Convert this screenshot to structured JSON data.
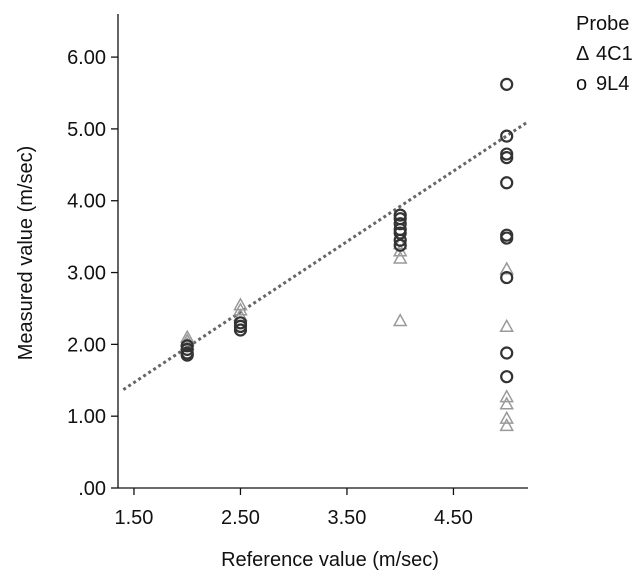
{
  "chart_data": {
    "type": "scatter",
    "xlabel": "Reference value (m/sec)",
    "ylabel": "Measured value (m/sec)",
    "xlim": [
      1.35,
      5.2
    ],
    "ylim": [
      0.0,
      6.6
    ],
    "xticks": [
      1.5,
      2.5,
      3.5,
      4.5
    ],
    "xtick_labels": [
      "1.50",
      "2.50",
      "3.50",
      "4.50"
    ],
    "yticks": [
      0,
      1,
      2,
      3,
      4,
      5,
      6
    ],
    "ytick_labels": [
      ".00",
      "1.00",
      "2.00",
      "3.00",
      "4.00",
      "5.00",
      "6.00"
    ],
    "legend": {
      "title": "Probe",
      "placement": "top-right outside",
      "entries": [
        {
          "symbol": "Δ",
          "label": "4C1"
        },
        {
          "symbol": "o",
          "label": "9L4"
        }
      ]
    },
    "series": [
      {
        "name": "4C1",
        "marker": "triangle",
        "color": "#9a9a9a",
        "points": [
          {
            "x": 2.0,
            "y": 2.1
          },
          {
            "x": 2.0,
            "y": 2.05
          },
          {
            "x": 2.0,
            "y": 2.0
          },
          {
            "x": 2.5,
            "y": 2.55
          },
          {
            "x": 2.5,
            "y": 2.48
          },
          {
            "x": 2.5,
            "y": 2.4
          },
          {
            "x": 4.0,
            "y": 3.4
          },
          {
            "x": 4.0,
            "y": 3.3
          },
          {
            "x": 4.0,
            "y": 3.2
          },
          {
            "x": 4.0,
            "y": 2.33
          },
          {
            "x": 5.0,
            "y": 3.05
          },
          {
            "x": 5.0,
            "y": 2.25
          },
          {
            "x": 5.0,
            "y": 1.27
          },
          {
            "x": 5.0,
            "y": 1.17
          },
          {
            "x": 5.0,
            "y": 0.97
          },
          {
            "x": 5.0,
            "y": 0.87
          }
        ]
      },
      {
        "name": "9L4",
        "marker": "circle",
        "color": "#333333",
        "points": [
          {
            "x": 2.0,
            "y": 1.98
          },
          {
            "x": 2.0,
            "y": 1.93
          },
          {
            "x": 2.0,
            "y": 1.88
          },
          {
            "x": 2.0,
            "y": 1.85
          },
          {
            "x": 2.5,
            "y": 2.3
          },
          {
            "x": 2.5,
            "y": 2.25
          },
          {
            "x": 2.5,
            "y": 2.2
          },
          {
            "x": 4.0,
            "y": 3.8
          },
          {
            "x": 4.0,
            "y": 3.75
          },
          {
            "x": 4.0,
            "y": 3.68
          },
          {
            "x": 4.0,
            "y": 3.6
          },
          {
            "x": 4.0,
            "y": 3.55
          },
          {
            "x": 4.0,
            "y": 3.45
          },
          {
            "x": 4.0,
            "y": 3.38
          },
          {
            "x": 5.0,
            "y": 5.62
          },
          {
            "x": 5.0,
            "y": 4.9
          },
          {
            "x": 5.0,
            "y": 4.65
          },
          {
            "x": 5.0,
            "y": 4.6
          },
          {
            "x": 5.0,
            "y": 4.25
          },
          {
            "x": 5.0,
            "y": 3.52
          },
          {
            "x": 5.0,
            "y": 3.48
          },
          {
            "x": 5.0,
            "y": 2.93
          },
          {
            "x": 5.0,
            "y": 1.88
          },
          {
            "x": 5.0,
            "y": 1.55
          }
        ]
      }
    ],
    "reference_line": {
      "style": "dotted",
      "color": "#666666",
      "points": [
        {
          "x": 1.4,
          "y": 1.37
        },
        {
          "x": 5.2,
          "y": 5.1
        }
      ]
    }
  }
}
